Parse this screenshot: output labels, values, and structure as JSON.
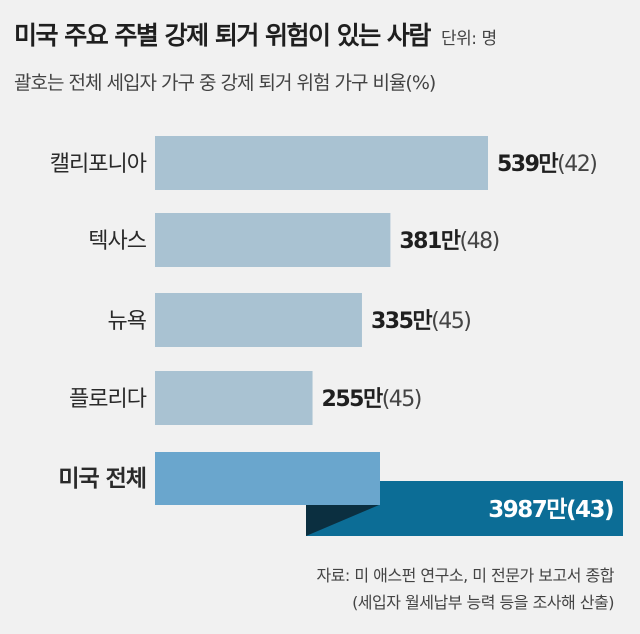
{
  "title": "미국 주요 주별 강제 퇴거 위험이 있는 사람",
  "unit": "단위: 명",
  "subtitle": "괄호는 전체 세입자 가구 중 강제 퇴거 위험 가구 비율(%)",
  "chart_data": {
    "type": "bar",
    "orientation": "horizontal",
    "categories": [
      "캘리포니아",
      "텍사스",
      "뉴욕",
      "플로리다",
      "미국 전체"
    ],
    "values": [
      539,
      381,
      335,
      255,
      3987
    ],
    "value_labels": [
      "539만",
      "381만",
      "335만",
      "255만",
      "3987만"
    ],
    "percent_labels": [
      "(42)",
      "(48)",
      "(45)",
      "(45)",
      "(43)"
    ],
    "percent_values": [
      42,
      48,
      45,
      45,
      43
    ],
    "value_unit": "만 명",
    "highlight_category": "미국 전체",
    "colors": {
      "bar": "#a9c2d2",
      "total_front": "#6aa6cd",
      "total_back": "#0c6d96",
      "total_shadow": "#0b2f40"
    },
    "grid": false,
    "legend": "none"
  },
  "source": [
    "자료: 미 애스펀 연구소, 미 전문가 보고서 종합",
    "(세입자 월세납부 능력 등을 조사해 산출)"
  ]
}
